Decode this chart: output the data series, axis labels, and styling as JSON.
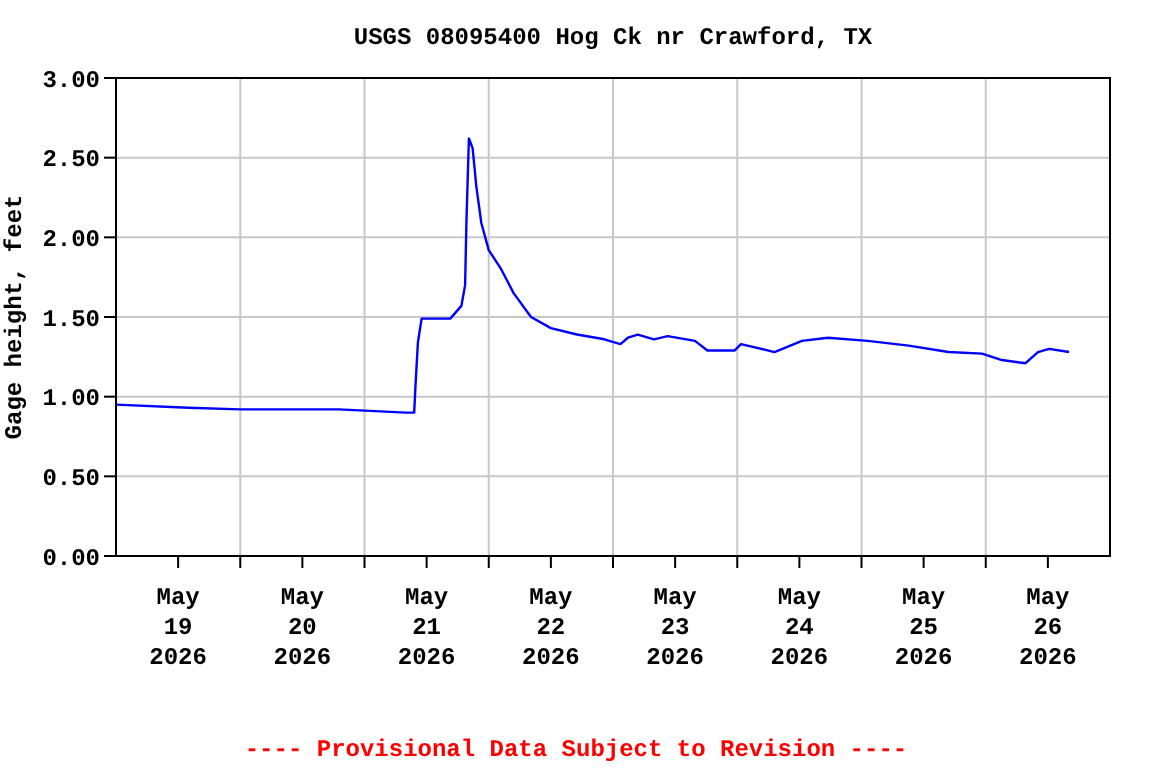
{
  "chart_data": {
    "type": "line",
    "title": "USGS 08095400 Hog Ck nr Crawford, TX",
    "ylabel": "Gage height, feet",
    "annotations": [
      "---- Provisional Data Subject to Revision ----"
    ],
    "x": [
      "2026-05-19T00:00",
      "2026-05-19T14:00",
      "2026-05-20T00:00",
      "2026-05-20T19:00",
      "2026-05-21T08:00",
      "2026-05-21T09:36",
      "2026-05-21T09:50",
      "2026-05-21T10:19",
      "2026-05-21T11:02",
      "2026-05-21T16:34",
      "2026-05-21T18:43",
      "2026-05-21T19:26",
      "2026-05-21T19:41",
      "2026-05-21T20:10",
      "2026-05-21T20:53",
      "2026-05-21T21:36",
      "2026-05-21T22:34",
      "2026-05-22T00:00",
      "2026-05-22T02:24",
      "2026-05-22T04:48",
      "2026-05-22T08:10",
      "2026-05-22T12:00",
      "2026-05-22T17:02",
      "2026-05-22T22:19",
      "2026-05-23T01:26",
      "2026-05-23T02:53",
      "2026-05-23T04:48",
      "2026-05-23T07:55",
      "2026-05-23T10:34",
      "2026-05-23T15:50",
      "2026-05-23T18:14",
      "2026-05-23T23:31",
      "2026-05-24T00:43",
      "2026-05-24T07:12",
      "2026-05-24T12:29",
      "2026-05-24T17:31",
      "2026-05-25T01:12",
      "2026-05-25T09:07",
      "2026-05-25T16:48",
      "2026-05-25T23:17",
      "2026-05-26T03:07",
      "2026-05-26T07:41",
      "2026-05-26T10:05",
      "2026-05-26T12:14",
      "2026-05-26T16:05"
    ],
    "series": [
      {
        "color": "#0000ff",
        "values": [
          0.95,
          0.93,
          0.92,
          0.92,
          0.9,
          0.9,
          1.06,
          1.34,
          1.49,
          1.49,
          1.57,
          1.7,
          2.09,
          2.62,
          2.56,
          2.32,
          2.09,
          1.92,
          1.8,
          1.65,
          1.5,
          1.43,
          1.39,
          1.36,
          1.33,
          1.37,
          1.39,
          1.36,
          1.38,
          1.35,
          1.29,
          1.29,
          1.33,
          1.28,
          1.35,
          1.37,
          1.35,
          1.32,
          1.28,
          1.27,
          1.23,
          1.21,
          1.28,
          1.3,
          1.28
        ]
      }
    ],
    "xlim": [
      "2026-05-19T00:00",
      "2026-05-27T00:00"
    ],
    "xticks": [
      {
        "value": "2026-05-19T12:00",
        "label": "May\n19\n2026"
      },
      {
        "value": "2026-05-20T00:00",
        "label": null
      },
      {
        "value": "2026-05-20T12:00",
        "label": "May\n20\n2026"
      },
      {
        "value": "2026-05-21T00:00",
        "label": null
      },
      {
        "value": "2026-05-21T12:00",
        "label": "May\n21\n2026"
      },
      {
        "value": "2026-05-22T00:00",
        "label": null
      },
      {
        "value": "2026-05-22T12:00",
        "label": "May\n22\n2026"
      },
      {
        "value": "2026-05-23T00:00",
        "label": null
      },
      {
        "value": "2026-05-23T12:00",
        "label": "May\n23\n2026"
      },
      {
        "value": "2026-05-24T00:00",
        "label": null
      },
      {
        "value": "2026-05-24T12:00",
        "label": "May\n24\n2026"
      },
      {
        "value": "2026-05-25T00:00",
        "label": null
      },
      {
        "value": "2026-05-25T12:00",
        "label": "May\n25\n2026"
      },
      {
        "value": "2026-05-26T00:00",
        "label": null
      },
      {
        "value": "2026-05-26T12:00",
        "label": "May\n26\n2026"
      }
    ],
    "ylim": [
      0,
      3
    ],
    "yticks": [
      {
        "value": 0,
        "label": "0.00"
      },
      {
        "value": 0.5,
        "label": "0.50"
      },
      {
        "value": 1,
        "label": "1.00"
      },
      {
        "value": 1.5,
        "label": "1.50"
      },
      {
        "value": 2,
        "label": "2.00"
      },
      {
        "value": 2.5,
        "label": "2.50"
      },
      {
        "value": 3,
        "label": "3.00"
      }
    ],
    "grid": true,
    "marker": "none",
    "line_style": "solid"
  }
}
